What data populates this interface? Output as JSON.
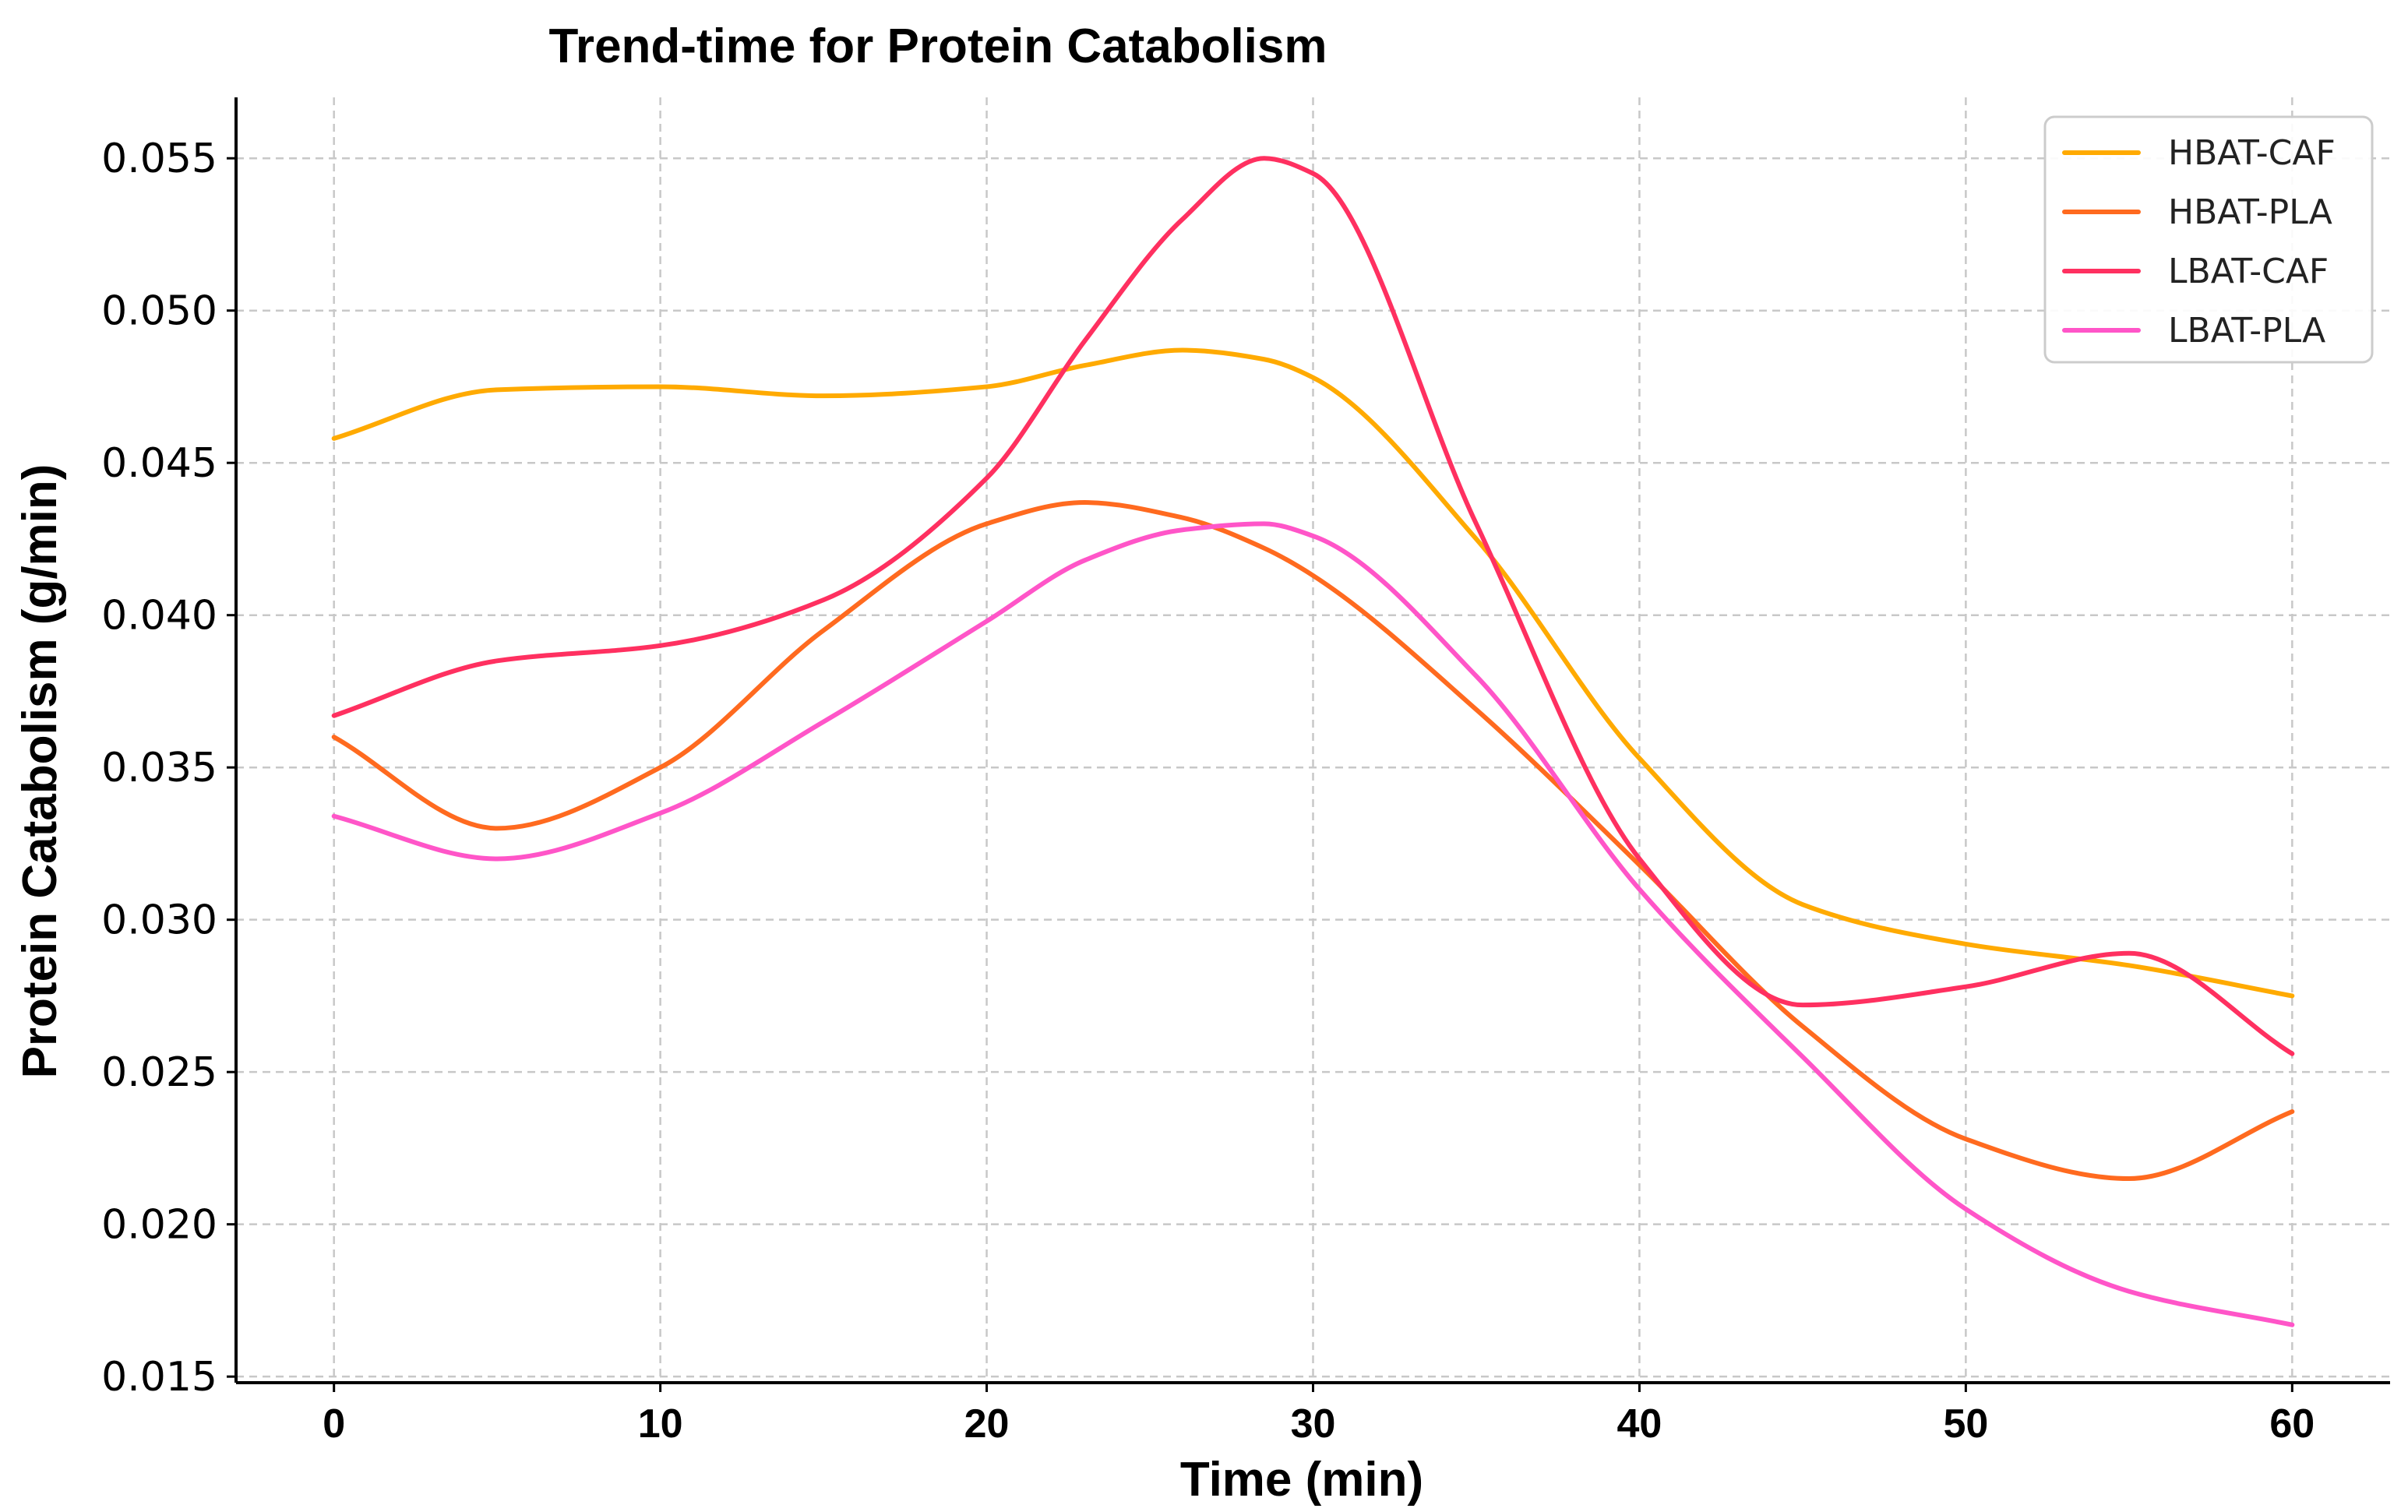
{
  "chart_data": {
    "type": "line",
    "title": "Trend-time for Protein Catabolism",
    "xlabel": "Time (min)",
    "ylabel": "Protein Catabolism (g/min)",
    "xlim": [
      -3,
      63
    ],
    "ylim": [
      0.0148,
      0.057
    ],
    "xticks": [
      0,
      10,
      20,
      30,
      40,
      50,
      60
    ],
    "xtick_labels": [
      "0",
      "10",
      "20",
      "30",
      "40",
      "50",
      "60"
    ],
    "yticks": [
      0.015,
      0.02,
      0.025,
      0.03,
      0.035,
      0.04,
      0.045,
      0.05,
      0.055
    ],
    "ytick_labels": [
      "0.015",
      "0.020",
      "0.025",
      "0.030",
      "0.035",
      "0.040",
      "0.045",
      "0.050",
      "0.055"
    ],
    "grid": true,
    "legend_position": "top-right",
    "x": [
      0,
      5,
      10,
      15,
      20,
      23,
      26,
      28.5,
      30,
      35,
      40,
      45,
      50,
      55,
      60
    ],
    "series": [
      {
        "name": "HBAT-CAF",
        "color": "#FFAA00",
        "values": [
          0.0458,
          0.0474,
          0.0475,
          0.0472,
          0.0475,
          0.0482,
          0.0487,
          0.0484,
          0.0478,
          0.0425,
          0.0353,
          0.0305,
          0.0292,
          0.0285,
          0.0275
        ]
      },
      {
        "name": "HBAT-PLA",
        "color": "#FF6A1F",
        "values": [
          0.036,
          0.033,
          0.035,
          0.0395,
          0.043,
          0.0437,
          0.0432,
          0.0422,
          0.0413,
          0.0369,
          0.0318,
          0.0265,
          0.0228,
          0.0215,
          0.0237
        ]
      },
      {
        "name": "LBAT-CAF",
        "color": "#FF3060",
        "values": [
          0.0367,
          0.0385,
          0.039,
          0.0405,
          0.0445,
          0.049,
          0.053,
          0.055,
          0.0545,
          0.043,
          0.032,
          0.0272,
          0.0278,
          0.0289,
          0.0256
        ]
      },
      {
        "name": "LBAT-PLA",
        "color": "#FF55C8",
        "values": [
          0.0334,
          0.032,
          0.0335,
          0.0365,
          0.0398,
          0.0418,
          0.0428,
          0.043,
          0.0426,
          0.038,
          0.031,
          0.0255,
          0.0205,
          0.0178,
          0.0167
        ]
      }
    ]
  }
}
